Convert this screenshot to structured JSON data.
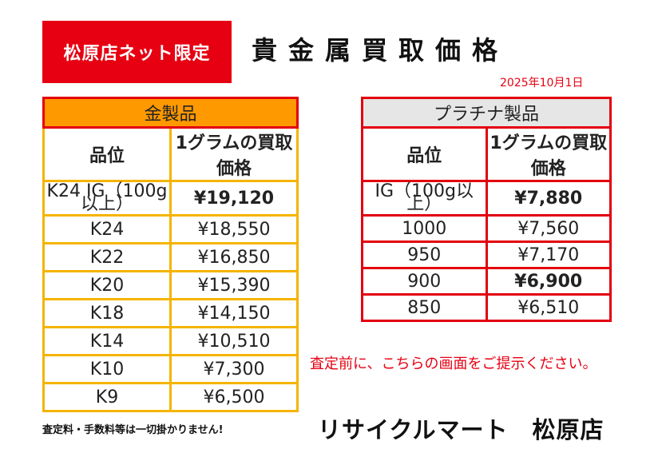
{
  "badge": "松原店ネット限定",
  "title": "貴金属買取価格",
  "date": "2025年10月1日",
  "gold": {
    "category": "金製品",
    "col_grade": "品位",
    "col_price": "1グラムの買取価格",
    "rows": [
      {
        "grade": "K24 IG（100g以上）",
        "price": "¥19,120"
      },
      {
        "grade": "K24",
        "price": "¥18,550"
      },
      {
        "grade": "K22",
        "price": "¥16,850"
      },
      {
        "grade": "K20",
        "price": "¥15,390"
      },
      {
        "grade": "K18",
        "price": "¥14,150"
      },
      {
        "grade": "K14",
        "price": "¥10,510"
      },
      {
        "grade": "K10",
        "price": "¥7,300"
      },
      {
        "grade": "K9",
        "price": "¥6,500"
      }
    ]
  },
  "platinum": {
    "category": "プラチナ製品",
    "col_grade": "品位",
    "col_price": "1グラムの買取価格",
    "rows": [
      {
        "grade": "IG（100g以上）",
        "price": "¥7,880"
      },
      {
        "grade": "1000",
        "price": "¥7,560"
      },
      {
        "grade": "950",
        "price": "¥7,170"
      },
      {
        "grade": "900",
        "price": "¥6,900"
      },
      {
        "grade": "850",
        "price": "¥6,510"
      }
    ]
  },
  "notice": "査定前に、こちらの画面をご提示ください。",
  "fee_note": "査定料・手数料等は一切掛かりません!",
  "shop_name": "リサイクルマート　松原店",
  "colors": {
    "accent_red": "#e60012",
    "gold_header": "#ff9900",
    "gold_border": "#f5b400",
    "platinum_header": "#e6e6e6"
  }
}
